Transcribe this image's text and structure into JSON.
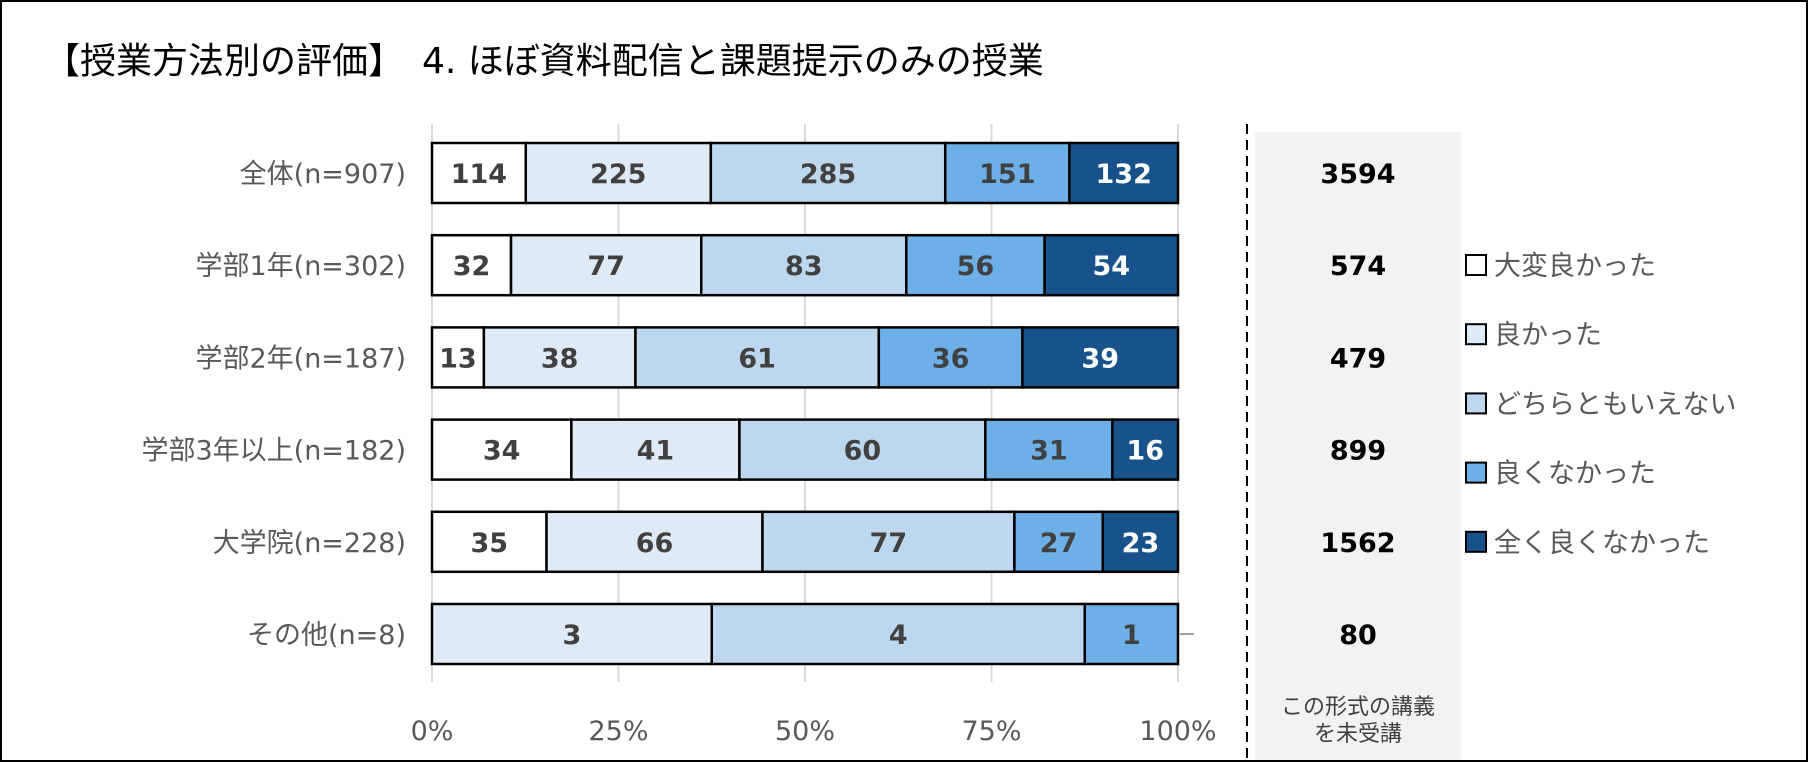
{
  "chart_data": {
    "type": "bar",
    "orientation": "horizontal",
    "stacked": "percent",
    "title": "【授業方法別の評価】　4. ほぼ資料配信と課題提示のみの授業",
    "categories": [
      "全体(n=907)",
      "学部1年(n=302)",
      "学部2年(n=187)",
      "学部3年以上(n=182)",
      "大学院(n=228)",
      "その他(n=8)"
    ],
    "series": [
      {
        "name": "大変良かった",
        "color": "#ffffff",
        "values": [
          114,
          32,
          13,
          34,
          35,
          0
        ]
      },
      {
        "name": "良かった",
        "color": "#deebf7",
        "values": [
          225,
          77,
          38,
          41,
          66,
          3
        ]
      },
      {
        "name": "どちらともいえない",
        "color": "#bdd7ee",
        "values": [
          285,
          83,
          61,
          60,
          77,
          4
        ]
      },
      {
        "name": "良くなかった",
        "color": "#6db0e8",
        "values": [
          151,
          56,
          36,
          31,
          27,
          1
        ]
      },
      {
        "name": "全く良くなかった",
        "color": "#18528a",
        "values": [
          132,
          54,
          39,
          16,
          23,
          0
        ]
      }
    ],
    "xlim": [
      0,
      100
    ],
    "xticks": [
      "0%",
      "25%",
      "50%",
      "75%",
      "100%"
    ],
    "grid": "vertical",
    "legend_position": "right",
    "side_column": {
      "header": [
        "この形式の講義",
        "を未受講"
      ],
      "values": [
        3594,
        574,
        479,
        899,
        1562,
        80
      ]
    }
  }
}
